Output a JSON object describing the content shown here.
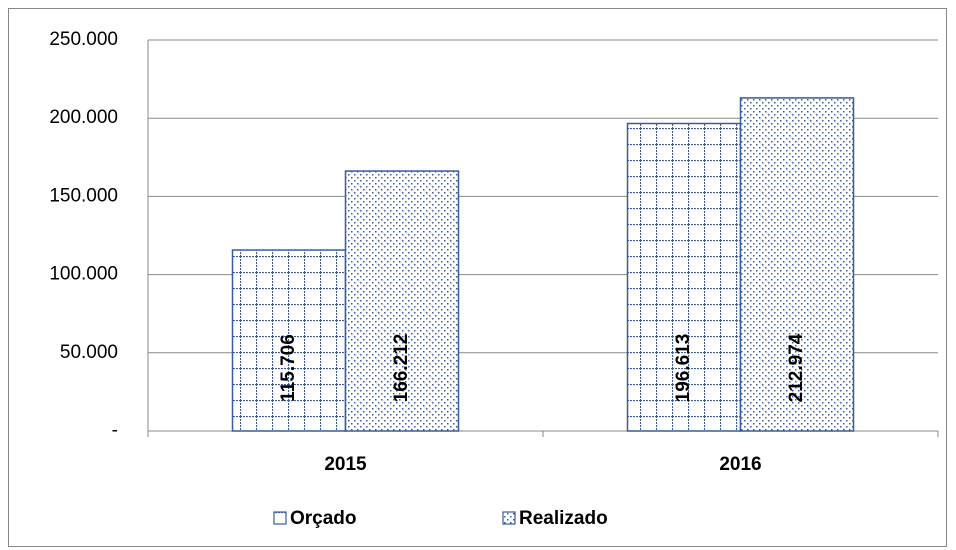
{
  "chart_data": {
    "type": "bar",
    "categories": [
      "2015",
      "2016"
    ],
    "series": [
      {
        "name": "Orçado",
        "color": "#3b5b9a",
        "values": [
          115706,
          196613
        ],
        "value_labels": [
          "115.706",
          "196.613"
        ]
      },
      {
        "name": "Realizado",
        "color": "#3b5b9a",
        "values": [
          166212,
          212974
        ],
        "value_labels": [
          "166.212",
          "212.974"
        ]
      }
    ],
    "ylim": [
      0,
      250000
    ],
    "yticks": [
      {
        "value": 0,
        "label": "-"
      },
      {
        "value": 50000,
        "label": "50.000"
      },
      {
        "value": 100000,
        "label": "100.000"
      },
      {
        "value": 150000,
        "label": "150.000"
      },
      {
        "value": 200000,
        "label": "200.000"
      },
      {
        "value": 250000,
        "label": "250.000"
      }
    ],
    "grid": true,
    "legend": "bottom"
  }
}
